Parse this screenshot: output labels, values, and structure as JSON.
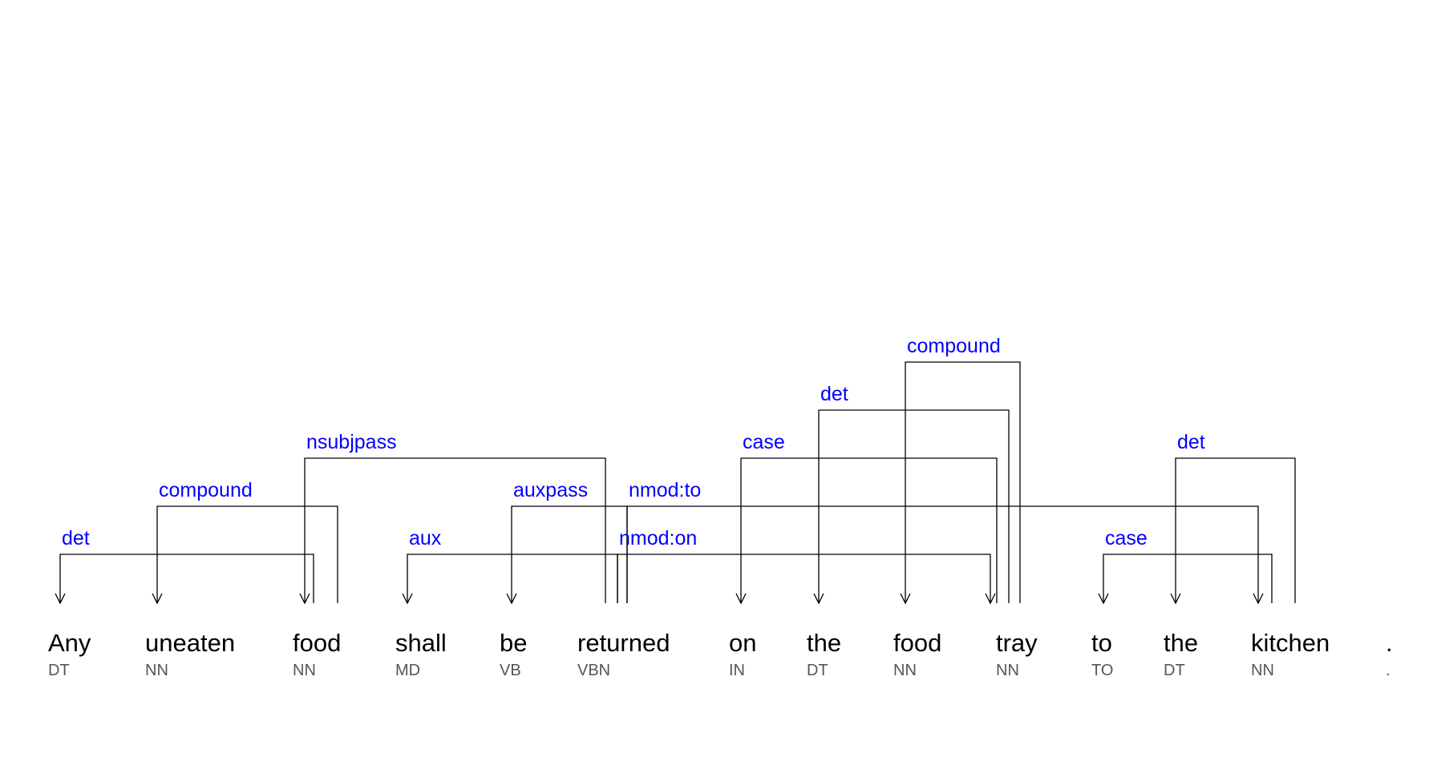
{
  "tokens": [
    {
      "word": "Any",
      "tag": "DT"
    },
    {
      "word": "uneaten",
      "tag": "NN"
    },
    {
      "word": "food",
      "tag": "NN"
    },
    {
      "word": "shall",
      "tag": "MD"
    },
    {
      "word": "be",
      "tag": "VB"
    },
    {
      "word": "returned",
      "tag": "VBN"
    },
    {
      "word": "on",
      "tag": "IN"
    },
    {
      "word": "the",
      "tag": "DT"
    },
    {
      "word": "food",
      "tag": "NN"
    },
    {
      "word": "tray",
      "tag": "NN"
    },
    {
      "word": "to",
      "tag": "TO"
    },
    {
      "word": "the",
      "tag": "DT"
    },
    {
      "word": "kitchen",
      "tag": "NN"
    },
    {
      "word": ".",
      "tag": "."
    }
  ],
  "arcs": [
    {
      "label": "det",
      "head": 2,
      "dep": 0
    },
    {
      "label": "compound",
      "head": 2,
      "dep": 1
    },
    {
      "label": "nsubjpass",
      "head": 5,
      "dep": 2
    },
    {
      "label": "aux",
      "head": 5,
      "dep": 3
    },
    {
      "label": "auxpass",
      "head": 5,
      "dep": 4
    },
    {
      "label": "nmod:on",
      "head": 5,
      "dep": 9
    },
    {
      "label": "nmod:to",
      "head": 5,
      "dep": 12
    },
    {
      "label": "case",
      "head": 9,
      "dep": 6
    },
    {
      "label": "det",
      "head": 9,
      "dep": 7
    },
    {
      "label": "compound",
      "head": 9,
      "dep": 8
    },
    {
      "label": "case",
      "head": 12,
      "dep": 10
    },
    {
      "label": "det",
      "head": 12,
      "dep": 11
    }
  ],
  "colors": {
    "label": "#0000ff",
    "arc": "#000000",
    "word": "#000000",
    "tag": "#555555"
  }
}
